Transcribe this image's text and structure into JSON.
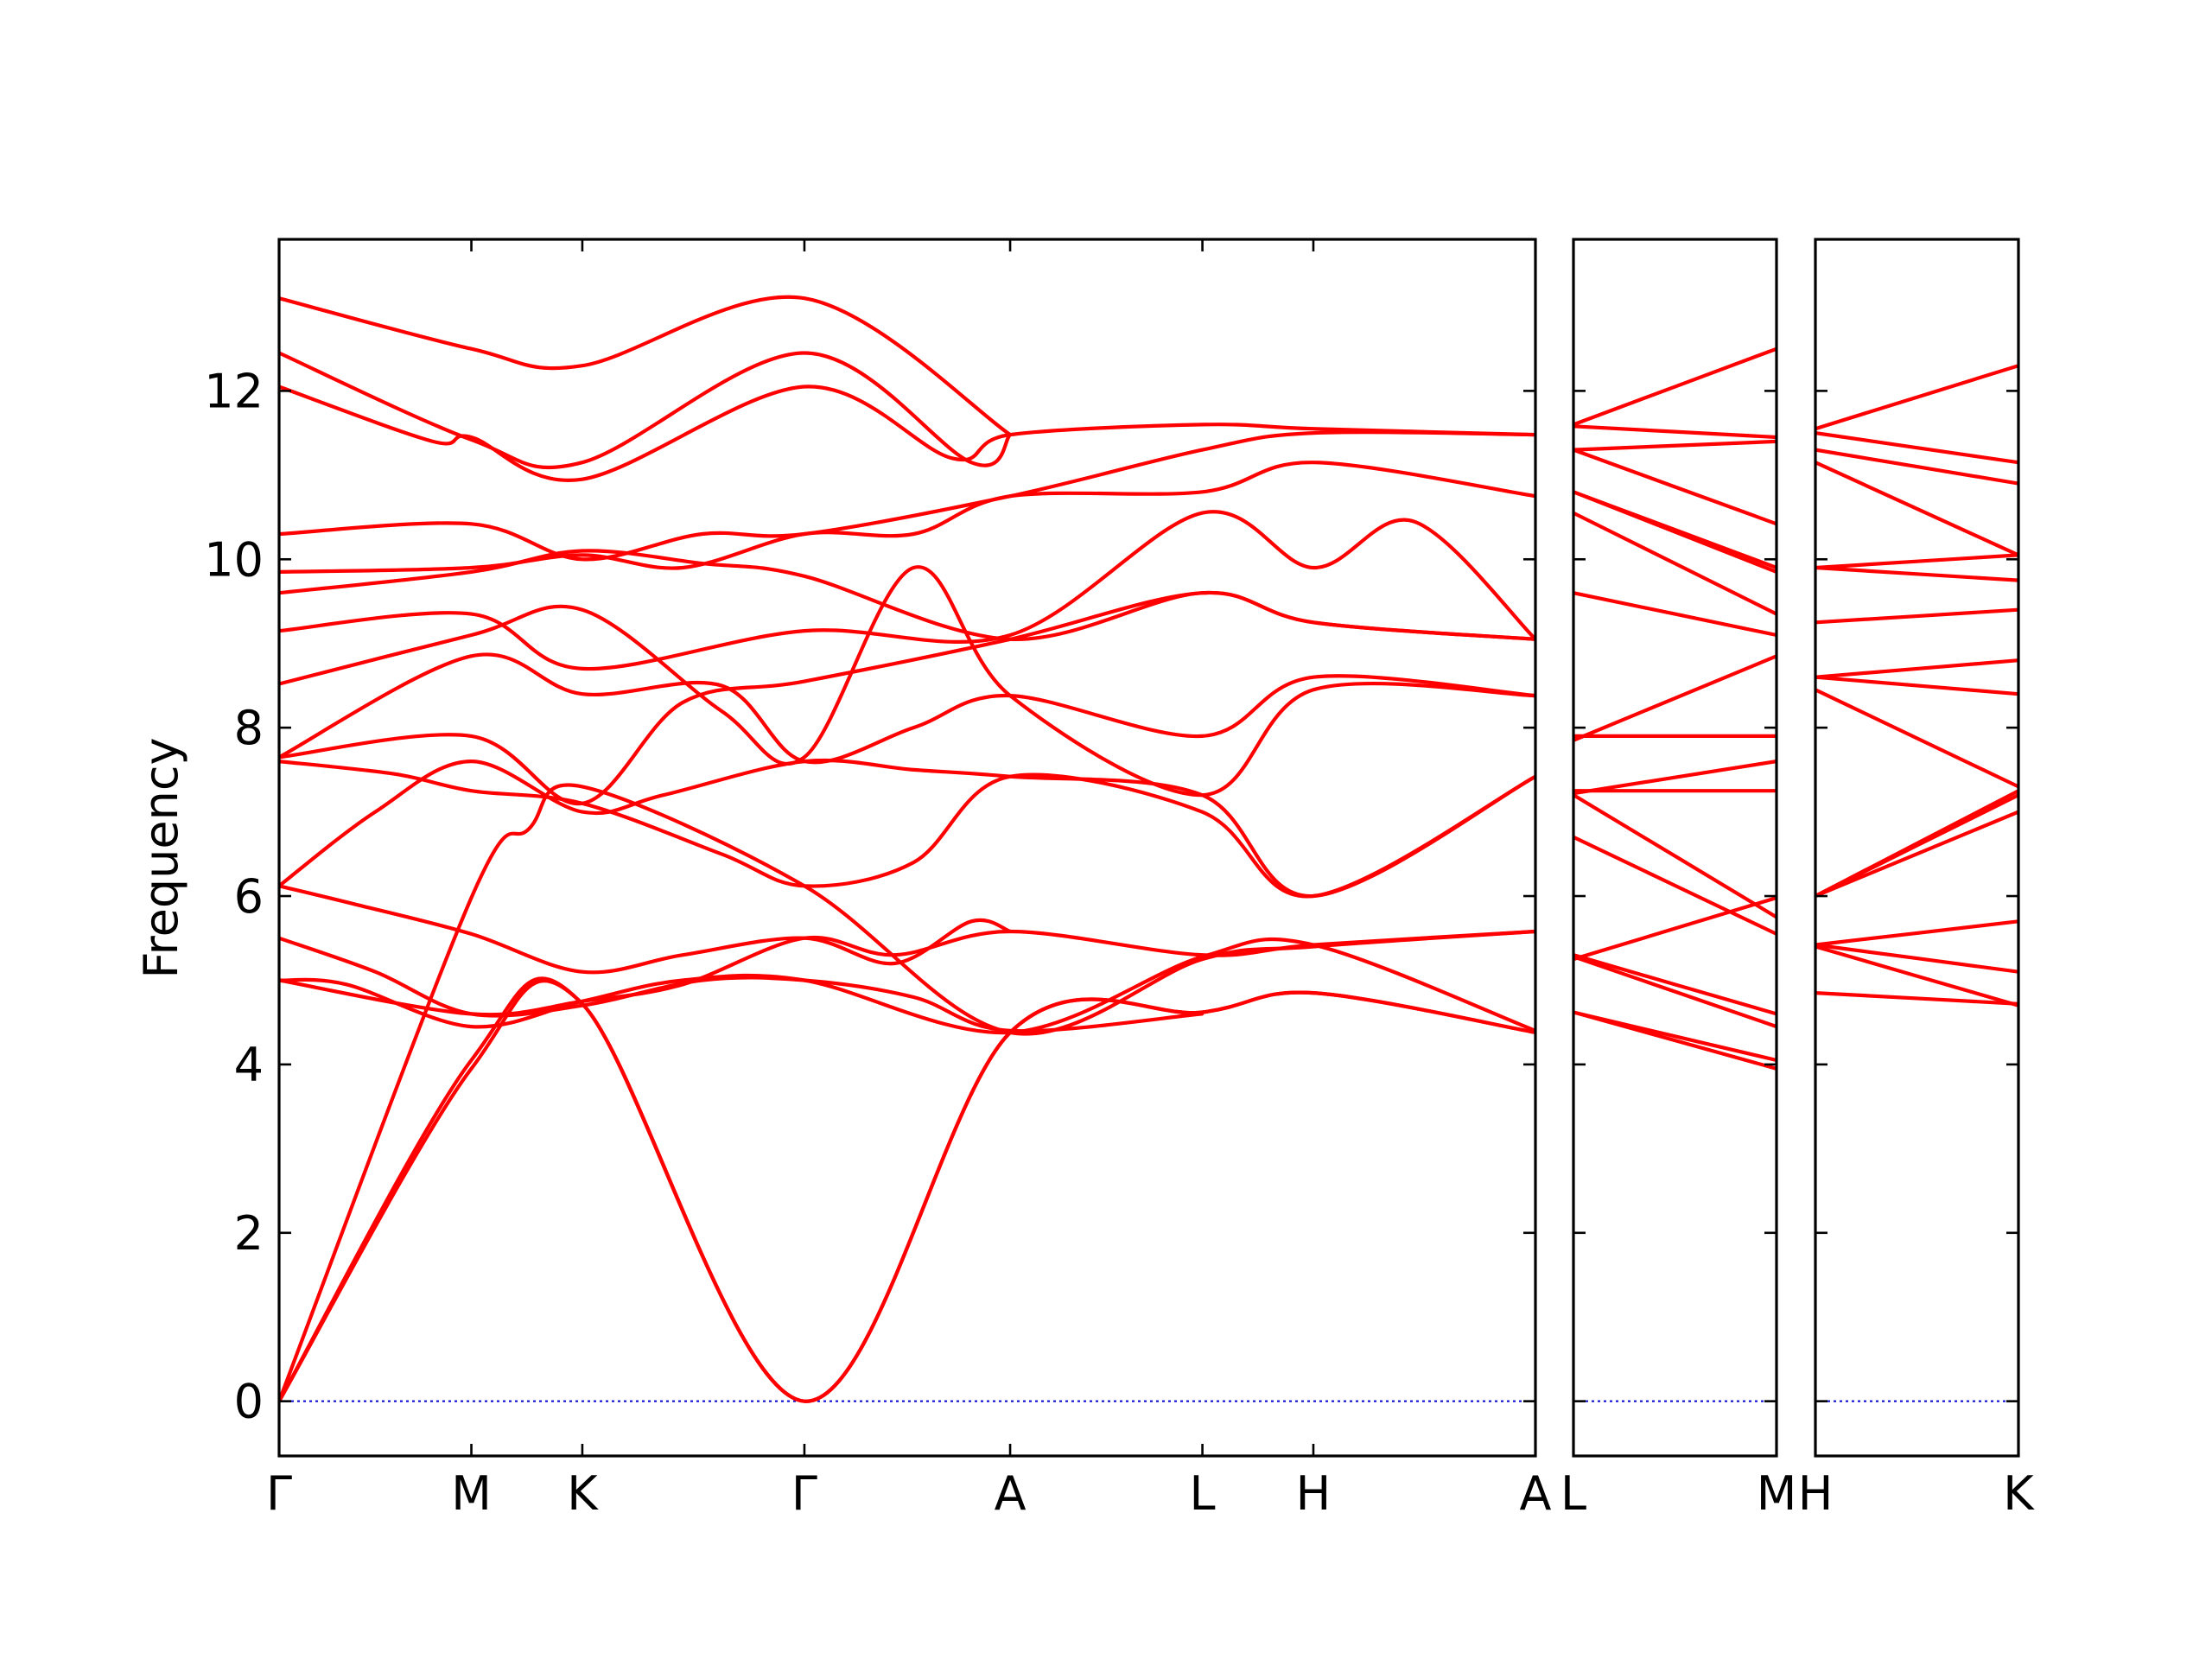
{
  "chart_data": {
    "type": "line",
    "ylabel": "Frequency",
    "ylim": [
      -0.65,
      13.8
    ],
    "yticks": [
      0,
      2,
      4,
      6,
      8,
      10,
      12
    ],
    "grid": false,
    "colors": {
      "bands": "#ff0000",
      "zero_line": "#0000cd",
      "frame": "#000000"
    },
    "panels": [
      {
        "path": [
          "Γ",
          "M",
          "K",
          "Γ",
          "A",
          "L",
          "H",
          "A"
        ],
        "tick_labels": [
          "Γ",
          "M",
          "K",
          "Γ",
          "A",
          "L",
          "H",
          "A"
        ],
        "segment_lengths": [
          1.0,
          0.577,
          1.155,
          1.07,
          1.0,
          0.577,
          1.155
        ],
        "bands": [
          [
            [
              0,
              0
            ],
            [
              1,
              3.95
            ],
            [
              1.577,
              4.72
            ],
            [
              2.732,
              0
            ],
            [
              3.802,
              4.38
            ],
            [
              4.802,
              4.62
            ],
            [
              5.379,
              4.85
            ],
            [
              6.534,
              4.38
            ]
          ],
          [
            [
              0,
              0
            ],
            [
              1,
              4.05
            ],
            [
              1.577,
              4.72
            ],
            [
              2.732,
              0
            ],
            [
              3.802,
              4.38
            ],
            [
              4.802,
              4.62
            ],
            [
              5.379,
              4.85
            ],
            [
              6.534,
              4.38
            ]
          ],
          [
            [
              0,
              0
            ],
            [
              1,
              5.98
            ],
            [
              1.3,
              6.8
            ],
            [
              1.577,
              7.3
            ],
            [
              2.732,
              6.12
            ],
            [
              3.802,
              4.38
            ],
            [
              4.802,
              5.25
            ],
            [
              5.379,
              5.4
            ],
            [
              6.534,
              5.58
            ]
          ],
          [
            [
              0,
              5.0
            ],
            [
              0.35,
              4.95
            ],
            [
              1,
              4.45
            ],
            [
              1.577,
              4.75
            ],
            [
              2.1,
              5.0
            ],
            [
              2.732,
              5.0
            ],
            [
              3.802,
              4.38
            ],
            [
              4.802,
              5.28
            ],
            [
              5.379,
              5.42
            ],
            [
              6.534,
              4.4
            ]
          ],
          [
            [
              0,
              5.0
            ],
            [
              1,
              4.6
            ],
            [
              1.577,
              4.75
            ],
            [
              2.1,
              4.95
            ],
            [
              2.732,
              5.5
            ],
            [
              3.2,
              5.3
            ],
            [
              3.802,
              5.58
            ],
            [
              4.802,
              5.3
            ],
            [
              5.379,
              5.42
            ],
            [
              6.534,
              5.58
            ]
          ],
          [
            [
              0,
              5.5
            ],
            [
              0.5,
              5.1
            ],
            [
              1,
              4.6
            ],
            [
              1.577,
              4.7
            ],
            [
              2.2,
              5.0
            ],
            [
              2.732,
              5.0
            ],
            [
              3.3,
              4.8
            ],
            [
              3.802,
              4.4
            ],
            [
              4.8,
              4.6
            ]
          ],
          [
            [
              0,
              6.12
            ],
            [
              0.4,
              5.9
            ],
            [
              1,
              5.55
            ],
            [
              1.577,
              5.1
            ],
            [
              2.1,
              5.3
            ],
            [
              2.732,
              5.5
            ],
            [
              3.2,
              5.2
            ],
            [
              3.6,
              5.7
            ],
            [
              3.802,
              5.58
            ]
          ],
          [
            [
              0,
              6.12
            ],
            [
              0.5,
              7.0
            ],
            [
              1,
              7.6
            ],
            [
              1.577,
              7.0
            ],
            [
              2.0,
              7.2
            ],
            [
              2.732,
              7.6
            ],
            [
              3.3,
              7.5
            ],
            [
              3.802,
              7.42
            ],
            [
              4.8,
              7.2
            ],
            [
              5.379,
              6.0
            ],
            [
              6.534,
              7.42
            ]
          ],
          [
            [
              0,
              7.6
            ],
            [
              0.6,
              7.45
            ],
            [
              1,
              7.25
            ],
            [
              1.577,
              7.1
            ],
            [
              2.3,
              6.5
            ],
            [
              2.732,
              6.12
            ],
            [
              3.3,
              6.4
            ],
            [
              3.802,
              7.42
            ],
            [
              4.8,
              7.0
            ],
            [
              5.379,
              6.0
            ],
            [
              6.534,
              7.42
            ]
          ],
          [
            [
              0,
              7.65
            ],
            [
              1,
              7.9
            ],
            [
              1.577,
              7.1
            ],
            [
              2.1,
              8.3
            ],
            [
              2.732,
              8.55
            ],
            [
              3.802,
              9.05
            ],
            [
              4.802,
              9.6
            ],
            [
              5.379,
              9.25
            ],
            [
              6.534,
              9.05
            ]
          ],
          [
            [
              0,
              7.65
            ],
            [
              1,
              8.85
            ],
            [
              1.577,
              8.4
            ],
            [
              2.3,
              8.5
            ],
            [
              2.732,
              7.6
            ],
            [
              3.3,
              8.0
            ],
            [
              3.802,
              8.38
            ],
            [
              4.8,
              7.9
            ],
            [
              5.379,
              8.6
            ],
            [
              6.534,
              8.38
            ]
          ],
          [
            [
              0,
              8.52
            ],
            [
              1,
              9.1
            ],
            [
              1.577,
              9.4
            ],
            [
              2.3,
              8.2
            ],
            [
              2.732,
              7.65
            ],
            [
              3.3,
              9.9
            ],
            [
              3.802,
              8.38
            ],
            [
              4.8,
              7.2
            ],
            [
              5.379,
              8.45
            ],
            [
              6.534,
              8.38
            ]
          ],
          [
            [
              0,
              9.15
            ],
            [
              1,
              9.35
            ],
            [
              1.577,
              8.7
            ],
            [
              2.732,
              9.15
            ],
            [
              3.802,
              9.1
            ],
            [
              4.8,
              10.55
            ],
            [
              5.379,
              9.9
            ],
            [
              5.9,
              10.45
            ],
            [
              6.534,
              9.05
            ]
          ],
          [
            [
              0,
              9.6
            ],
            [
              1,
              9.85
            ],
            [
              1.577,
              10.1
            ],
            [
              2.2,
              9.95
            ],
            [
              2.732,
              9.8
            ],
            [
              3.802,
              9.05
            ],
            [
              4.8,
              9.6
            ],
            [
              5.379,
              9.25
            ],
            [
              6.534,
              9.05
            ]
          ],
          [
            [
              0,
              9.85
            ],
            [
              1,
              9.9
            ],
            [
              1.577,
              10.05
            ],
            [
              2.1,
              9.9
            ],
            [
              2.732,
              10.3
            ],
            [
              3.3,
              10.3
            ],
            [
              3.802,
              10.75
            ],
            [
              4.802,
              10.8
            ],
            [
              5.379,
              11.15
            ],
            [
              6.534,
              10.75
            ]
          ],
          [
            [
              0,
              10.3
            ],
            [
              1,
              10.42
            ],
            [
              1.577,
              10.0
            ],
            [
              2.2,
              10.3
            ],
            [
              2.732,
              10.3
            ],
            [
              3.802,
              10.75
            ],
            [
              4.802,
              11.3
            ],
            [
              5.379,
              11.5
            ],
            [
              6.534,
              11.48
            ]
          ],
          [
            [
              0,
              12.05
            ],
            [
              0.8,
              11.4
            ],
            [
              1,
              11.45
            ],
            [
              1.577,
              10.95
            ],
            [
              2.732,
              12.05
            ],
            [
              3.5,
              11.2
            ],
            [
              3.802,
              11.48
            ],
            [
              4.802,
              11.6
            ],
            [
              5.379,
              11.55
            ],
            [
              6.534,
              11.48
            ]
          ],
          [
            [
              0,
              12.45
            ],
            [
              1,
              11.42
            ],
            [
              1.577,
              11.15
            ],
            [
              2.732,
              12.45
            ],
            [
              3.6,
              11.15
            ],
            [
              3.802,
              11.48
            ]
          ],
          [
            [
              0,
              13.1
            ],
            [
              1,
              12.5
            ],
            [
              1.577,
              12.3
            ],
            [
              2.732,
              13.1
            ],
            [
              3.802,
              11.48
            ]
          ]
        ]
      },
      {
        "path": [
          "L",
          "M"
        ],
        "tick_labels": [
          "L",
          "M"
        ],
        "segment_lengths": [
          1.0
        ],
        "bands": [
          [
            [
              0,
              4.62
            ],
            [
              1,
              3.95
            ]
          ],
          [
            [
              0,
              4.62
            ],
            [
              1,
              4.05
            ]
          ],
          [
            [
              0,
              5.25
            ],
            [
              1,
              5.98
            ]
          ],
          [
            [
              0,
              5.28
            ],
            [
              1,
              4.45
            ]
          ],
          [
            [
              0,
              5.3
            ],
            [
              1,
              4.6
            ]
          ],
          [
            [
              0,
              6.7
            ],
            [
              1,
              5.55
            ]
          ],
          [
            [
              0,
              7.2
            ],
            [
              1,
              5.75
            ]
          ],
          [
            [
              0,
              7.25
            ],
            [
              1,
              7.25
            ]
          ],
          [
            [
              0,
              7.22
            ],
            [
              1,
              7.6
            ]
          ],
          [
            [
              0,
              7.9
            ],
            [
              1,
              7.9
            ]
          ],
          [
            [
              0,
              7.85
            ],
            [
              1,
              8.85
            ]
          ],
          [
            [
              0,
              9.6
            ],
            [
              1,
              9.1
            ]
          ],
          [
            [
              0,
              10.55
            ],
            [
              1,
              9.35
            ]
          ],
          [
            [
              0,
              10.8
            ],
            [
              1,
              9.85
            ]
          ],
          [
            [
              0,
              10.8
            ],
            [
              1,
              9.9
            ]
          ],
          [
            [
              0,
              11.3
            ],
            [
              1,
              10.42
            ]
          ],
          [
            [
              0,
              11.3
            ],
            [
              1,
              11.4
            ]
          ],
          [
            [
              0,
              11.58
            ],
            [
              1,
              11.45
            ]
          ],
          [
            [
              0,
              11.6
            ],
            [
              1,
              12.5
            ]
          ]
        ]
      },
      {
        "path": [
          "H",
          "K"
        ],
        "tick_labels": [
          "H",
          "K"
        ],
        "segment_lengths": [
          1.0
        ],
        "bands": [
          [
            [
              0,
              4.85
            ],
            [
              1,
              4.72
            ]
          ],
          [
            [
              0,
              5.4
            ],
            [
              1,
              4.7
            ]
          ],
          [
            [
              0,
              5.42
            ],
            [
              1,
              5.1
            ]
          ],
          [
            [
              0,
              5.42
            ],
            [
              1,
              5.7
            ]
          ],
          [
            [
              0,
              6.0
            ],
            [
              1,
              7.0
            ]
          ],
          [
            [
              0,
              6.0
            ],
            [
              1,
              7.2
            ]
          ],
          [
            [
              0,
              6.0
            ],
            [
              1,
              7.25
            ]
          ],
          [
            [
              0,
              8.45
            ],
            [
              1,
              7.3
            ]
          ],
          [
            [
              0,
              8.6
            ],
            [
              1,
              8.4
            ]
          ],
          [
            [
              0,
              8.6
            ],
            [
              1,
              8.8
            ]
          ],
          [
            [
              0,
              9.25
            ],
            [
              1,
              9.4
            ]
          ],
          [
            [
              0,
              9.9
            ],
            [
              1,
              9.75
            ]
          ],
          [
            [
              0,
              9.9
            ],
            [
              1,
              10.05
            ]
          ],
          [
            [
              0,
              11.15
            ],
            [
              1,
              10.05
            ]
          ],
          [
            [
              0,
              11.3
            ],
            [
              1,
              10.9
            ]
          ],
          [
            [
              0,
              11.5
            ],
            [
              1,
              11.15
            ]
          ],
          [
            [
              0,
              11.55
            ],
            [
              1,
              12.3
            ]
          ]
        ]
      }
    ]
  }
}
